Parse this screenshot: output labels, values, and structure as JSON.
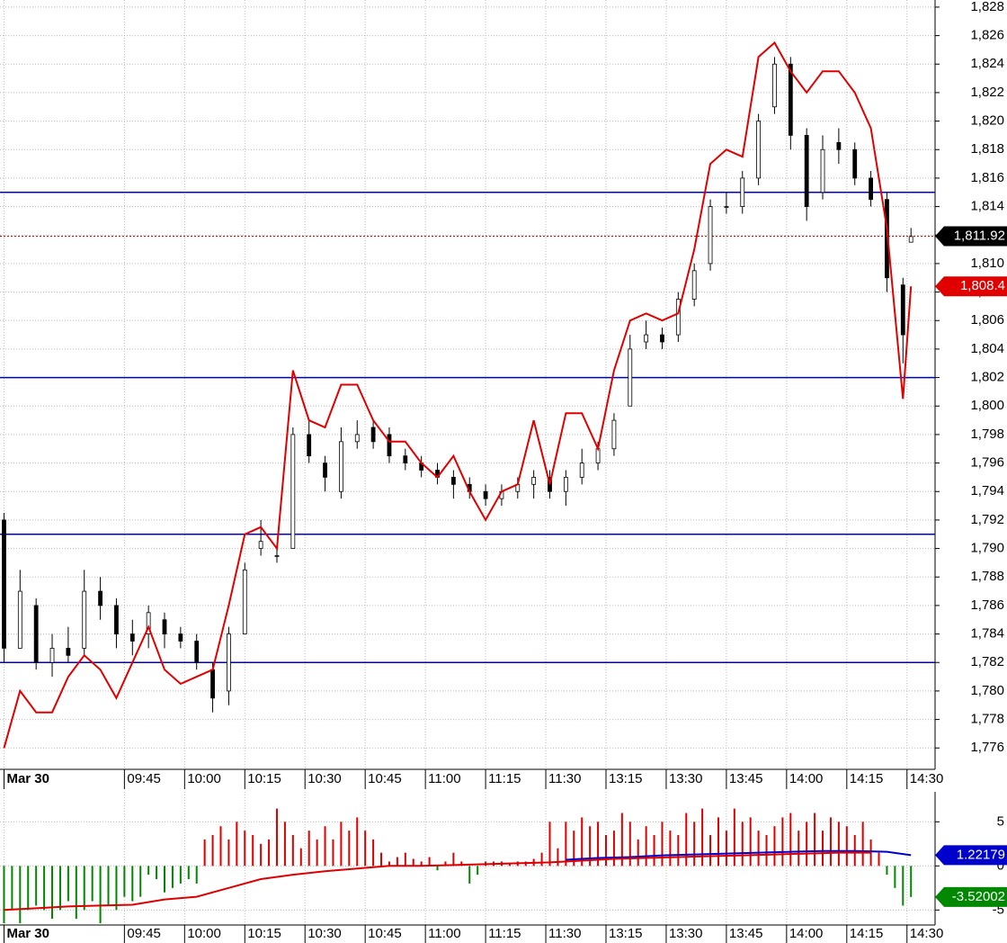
{
  "chart_data": [
    {
      "type": "candlestick",
      "x": [
        0,
        4,
        8,
        12,
        16,
        20,
        24,
        28,
        32,
        36,
        40,
        44,
        48,
        52,
        56,
        60,
        64,
        68,
        72,
        76,
        80,
        84,
        88,
        92,
        96,
        100,
        104,
        108,
        112,
        116,
        120,
        124,
        128,
        132,
        136,
        140,
        144,
        148,
        152,
        156,
        160,
        164,
        168,
        172,
        176,
        180,
        184,
        188,
        192,
        196,
        200,
        204,
        208,
        212,
        216,
        220,
        224,
        226
      ],
      "open": [
        1792,
        1783,
        1786,
        1782,
        1783,
        1783,
        1787,
        1786,
        1784,
        1784,
        1785,
        1784,
        1783.5,
        1781.5,
        1780,
        1784,
        1790,
        1789.5,
        1790,
        1798,
        1796,
        1794,
        1797.5,
        1798.5,
        1798,
        1796.5,
        1796,
        1795.5,
        1795,
        1794.5,
        1794,
        1793.5,
        1794,
        1794.5,
        1795,
        1794,
        1795,
        1796,
        1797,
        1800,
        1804.5,
        1805,
        1805,
        1807.5,
        1810,
        1814,
        1814,
        1816,
        1821,
        1824,
        1819,
        1815,
        1818.5,
        1818,
        1816,
        1814.5,
        1808.5,
        1811.5
      ],
      "high": [
        1792.5,
        1788.5,
        1786.5,
        1784,
        1784.5,
        1788.5,
        1788,
        1786.5,
        1785,
        1786,
        1785.5,
        1784.5,
        1784,
        1782,
        1784.5,
        1789,
        1792,
        1790,
        1798.5,
        1799,
        1796.5,
        1798.5,
        1799,
        1799,
        1798.5,
        1797,
        1796.5,
        1796,
        1795.5,
        1795,
        1794.5,
        1794.5,
        1795,
        1795.5,
        1795.5,
        1795.5,
        1797,
        1797.5,
        1799.5,
        1805,
        1806,
        1805.5,
        1808,
        1810,
        1814.5,
        1815,
        1816.5,
        1820.5,
        1824.5,
        1824.5,
        1819.5,
        1819,
        1819.5,
        1818.5,
        1816.5,
        1815,
        1809,
        1812.5
      ],
      "low": [
        1782,
        1783,
        1781.5,
        1781,
        1782,
        1782.5,
        1785,
        1783,
        1782.5,
        1783,
        1783,
        1783,
        1781.5,
        1778.5,
        1779,
        1784,
        1789.5,
        1789,
        1790,
        1796,
        1794,
        1793.5,
        1797,
        1797,
        1796,
        1795.5,
        1795,
        1794.5,
        1793.5,
        1793.5,
        1793,
        1793,
        1793.5,
        1793.5,
        1793.5,
        1793,
        1794.5,
        1795.5,
        1796.5,
        1800,
        1804,
        1804,
        1804.5,
        1807,
        1809.5,
        1813.5,
        1813.5,
        1815.5,
        1820.5,
        1818,
        1813,
        1814.5,
        1817,
        1815.5,
        1814,
        1808,
        1803,
        1811.5
      ],
      "close": [
        1783,
        1787,
        1782,
        1783,
        1782.5,
        1787,
        1786,
        1784,
        1783.5,
        1785.5,
        1784,
        1783.5,
        1782,
        1779.5,
        1784,
        1788.5,
        1790.5,
        1789.5,
        1798,
        1796.5,
        1795,
        1797.5,
        1798,
        1797.5,
        1796.5,
        1796,
        1795.5,
        1795,
        1794.5,
        1794,
        1793.5,
        1794,
        1794.5,
        1795,
        1794,
        1795,
        1796,
        1797,
        1799,
        1804,
        1805,
        1804.5,
        1807.5,
        1809.5,
        1814,
        1814,
        1816,
        1820,
        1824,
        1819,
        1814,
        1818,
        1818,
        1816,
        1814.5,
        1809,
        1805,
        1811.9
      ],
      "color_up": "#ffffff",
      "color_down": "#000000",
      "overlay": {
        "color": "#e00000",
        "values": [
          1776,
          1780,
          1778.5,
          1778.5,
          1781,
          1782.5,
          1781.5,
          1779.5,
          1782,
          1784.5,
          1781.5,
          1780.5,
          1781,
          1781.5,
          1786,
          1791,
          1791.5,
          1790,
          1802.5,
          1799,
          1798.5,
          1801.5,
          1801.5,
          1799,
          1797.5,
          1797.5,
          1796,
          1795,
          1796.5,
          1794,
          1792,
          1794,
          1794.5,
          1799,
          1794.5,
          1799.5,
          1799.5,
          1797,
          1802.5,
          1806,
          1806.5,
          1806,
          1806.5,
          1811,
          1817,
          1818,
          1817.5,
          1824.5,
          1825.5,
          1823.5,
          1822,
          1823.5,
          1823.5,
          1822,
          1819.5,
          1812.5,
          1800.5,
          1808.4
        ]
      },
      "hlines": {
        "color": "#0000cc",
        "values": [
          1815,
          1802,
          1791,
          1782
        ]
      },
      "price_tags": [
        {
          "value": 1811.92,
          "label": "1,811.92",
          "color": "#000000",
          "line_color": "#e00000"
        },
        {
          "value": 1808.4,
          "label": "1,808.4",
          "color": "#e00000"
        }
      ],
      "xlim": [
        -1,
        232
      ],
      "ylim": [
        1774.5,
        1828.5
      ],
      "grid": true,
      "xticks": [
        {
          "value": 0,
          "label": "Mar 30"
        },
        {
          "value": 30,
          "label": "09:45"
        },
        {
          "value": 45,
          "label": "10:00"
        },
        {
          "value": 60,
          "label": "10:15"
        },
        {
          "value": 75,
          "label": "10:30"
        },
        {
          "value": 90,
          "label": "10:45"
        },
        {
          "value": 105,
          "label": "11:00"
        },
        {
          "value": 120,
          "label": "11:15"
        },
        {
          "value": 135,
          "label": "11:30"
        },
        {
          "value": 150,
          "label": "13:15"
        },
        {
          "value": 165,
          "label": "13:30"
        },
        {
          "value": 180,
          "label": "13:45"
        },
        {
          "value": 195,
          "label": "14:00"
        },
        {
          "value": 210,
          "label": "14:15"
        },
        {
          "value": 225,
          "label": "14:30"
        }
      ],
      "yticks": [
        {
          "value": 1776,
          "label": "1,776"
        },
        {
          "value": 1778,
          "label": "1,778"
        },
        {
          "value": 1780,
          "label": "1,780"
        },
        {
          "value": 1782,
          "label": "1,782"
        },
        {
          "value": 1784,
          "label": "1,784"
        },
        {
          "value": 1786,
          "label": "1,786"
        },
        {
          "value": 1788,
          "label": "1,788"
        },
        {
          "value": 1790,
          "label": "1,790"
        },
        {
          "value": 1792,
          "label": "1,792"
        },
        {
          "value": 1794,
          "label": "1,794"
        },
        {
          "value": 1796,
          "label": "1,796"
        },
        {
          "value": 1798,
          "label": "1,798"
        },
        {
          "value": 1800,
          "label": "1,800"
        },
        {
          "value": 1802,
          "label": "1,802"
        },
        {
          "value": 1804,
          "label": "1,804"
        },
        {
          "value": 1806,
          "label": "1,806"
        },
        {
          "value": 1808,
          "label": "1,808"
        },
        {
          "value": 1810,
          "label": "1,810"
        },
        {
          "value": 1812,
          "label": "1,812"
        },
        {
          "value": 1814,
          "label": "1,814"
        },
        {
          "value": 1816,
          "label": "1,816"
        },
        {
          "value": 1818,
          "label": "1,818"
        },
        {
          "value": 1820,
          "label": "1,820"
        },
        {
          "value": 1822,
          "label": "1,822"
        },
        {
          "value": 1824,
          "label": "1,824"
        },
        {
          "value": 1826,
          "label": "1,826"
        },
        {
          "value": 1828,
          "label": "1,828"
        }
      ]
    },
    {
      "type": "bar",
      "x": [
        0,
        2,
        4,
        6,
        8,
        10,
        12,
        14,
        16,
        18,
        20,
        22,
        24,
        26,
        28,
        30,
        32,
        34,
        36,
        38,
        40,
        42,
        44,
        46,
        48,
        50,
        52,
        54,
        56,
        58,
        60,
        62,
        64,
        66,
        68,
        70,
        72,
        74,
        76,
        78,
        80,
        82,
        84,
        86,
        88,
        90,
        92,
        94,
        96,
        98,
        100,
        102,
        104,
        106,
        108,
        110,
        112,
        114,
        116,
        118,
        120,
        122,
        124,
        126,
        128,
        130,
        132,
        134,
        136,
        138,
        140,
        142,
        144,
        146,
        148,
        150,
        152,
        154,
        156,
        158,
        160,
        162,
        164,
        166,
        168,
        170,
        172,
        174,
        176,
        178,
        180,
        182,
        184,
        186,
        188,
        190,
        192,
        194,
        196,
        198,
        200,
        202,
        204,
        206,
        208,
        210,
        212,
        214,
        216,
        218,
        220,
        222,
        224,
        226
      ],
      "values": [
        -6.5,
        -5,
        -6.5,
        -5,
        -4.5,
        -5,
        -6,
        -5,
        -4,
        -6,
        -5,
        -4,
        -6.5,
        -4.5,
        -5,
        -3.5,
        -4,
        -3.5,
        -1,
        -1.5,
        -3,
        -2.5,
        -2,
        -1.5,
        -2,
        3,
        3.5,
        4.5,
        3,
        5,
        4,
        3.5,
        2.5,
        3,
        6.5,
        5,
        3.5,
        2,
        4,
        3,
        4.5,
        3,
        5,
        4,
        5.5,
        4,
        3,
        1.5,
        0.5,
        1,
        1.5,
        0.8,
        0.5,
        1,
        -0.5,
        0.5,
        1.5,
        0.5,
        -2,
        -1,
        0.5,
        0.5,
        0.5,
        0.3,
        0.5,
        0.5,
        0.8,
        1.5,
        5,
        2,
        5,
        4,
        5.5,
        4.5,
        5,
        3.5,
        4,
        6,
        5,
        3,
        4.5,
        3.5,
        5,
        4,
        3.5,
        6,
        5,
        6.5,
        3.5,
        5.5,
        4,
        6.5,
        5,
        5.5,
        4,
        3.5,
        4.5,
        5.5,
        6,
        4,
        5,
        6,
        4,
        5.5,
        5,
        4.5,
        3.5,
        5,
        3,
        1.5,
        -1,
        -2.5,
        -4.5,
        -3.52002
      ],
      "color_up": "#dd0000",
      "color_down": "#008800",
      "lines": [
        {
          "color": "#0000cc",
          "x": [
            140,
            148,
            156,
            164,
            172,
            180,
            188,
            196,
            204,
            212,
            220,
            226
          ],
          "values": [
            0.7,
            0.9,
            1,
            1.2,
            1.3,
            1.4,
            1.5,
            1.6,
            1.7,
            1.7,
            1.6,
            1.22179
          ]
        },
        {
          "color": "#dd0000",
          "x": [
            0,
            8,
            16,
            24,
            32,
            40,
            48,
            56,
            64,
            72,
            80,
            88,
            96,
            104,
            112,
            120,
            128,
            136,
            144,
            152,
            160,
            168,
            176,
            184,
            192,
            200,
            208,
            216
          ],
          "values": [
            -5,
            -4.8,
            -4.6,
            -4.5,
            -4.4,
            -3.8,
            -3.5,
            -2.5,
            -1.5,
            -1,
            -0.6,
            -0.3,
            0,
            0,
            0.1,
            0.2,
            0.3,
            0.4,
            0.6,
            0.8,
            0.9,
            1,
            1.1,
            1.2,
            1.3,
            1.4,
            1.5,
            1.5
          ]
        }
      ],
      "value_tags": [
        {
          "value": 1.22179,
          "label": "1.22179",
          "color": "#0000cc"
        },
        {
          "value": -3.52002,
          "label": "-3.52002",
          "color": "#008800"
        }
      ],
      "xlim": [
        -1,
        232
      ],
      "ylim": [
        -6.7,
        8.4
      ],
      "grid": true,
      "xticks": [
        {
          "value": 0,
          "label": "Mar 30"
        },
        {
          "value": 30,
          "label": "09:45"
        },
        {
          "value": 45,
          "label": "10:00"
        },
        {
          "value": 60,
          "label": "10:15"
        },
        {
          "value": 75,
          "label": "10:30"
        },
        {
          "value": 90,
          "label": "10:45"
        },
        {
          "value": 105,
          "label": "11:00"
        },
        {
          "value": 120,
          "label": "11:15"
        },
        {
          "value": 135,
          "label": "11:30"
        },
        {
          "value": 150,
          "label": "13:15"
        },
        {
          "value": 165,
          "label": "13:30"
        },
        {
          "value": 180,
          "label": "13:45"
        },
        {
          "value": 195,
          "label": "14:00"
        },
        {
          "value": 210,
          "label": "14:15"
        },
        {
          "value": 225,
          "label": "14:30"
        }
      ],
      "yticks": [
        -5,
        0,
        5
      ]
    }
  ]
}
